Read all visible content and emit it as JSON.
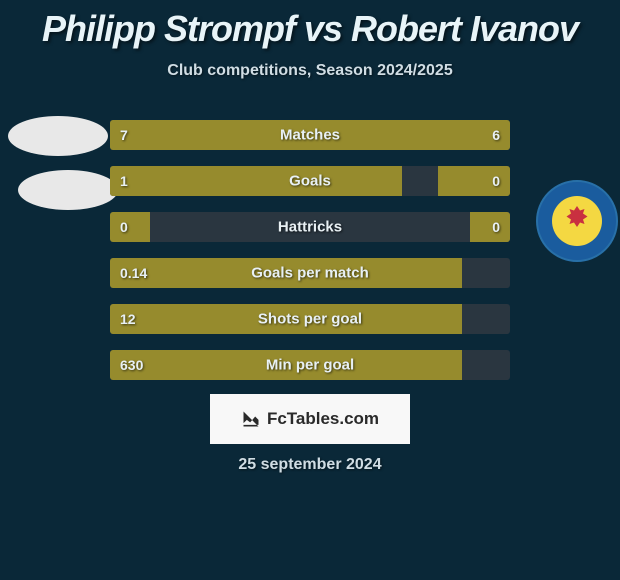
{
  "title": "Philipp Strompf vs Robert Ivanov",
  "subtitle": "Club competitions, Season 2024/2025",
  "date": "25 september 2024",
  "logo_text": "FcTables.com",
  "colors": {
    "background": "#0a2838",
    "bar_fill": "#968b2d",
    "bar_empty": "#2a3640",
    "text_light": "#e8f4f8",
    "text_mid": "#d0dde4"
  },
  "stats": [
    {
      "label": "Matches",
      "left_value": "7",
      "right_value": "6",
      "left_pct": 50,
      "right_pct": 50
    },
    {
      "label": "Goals",
      "left_value": "1",
      "right_value": "0",
      "left_pct": 73,
      "right_pct": 18
    },
    {
      "label": "Hattricks",
      "left_value": "0",
      "right_value": "0",
      "left_pct": 10,
      "right_pct": 10
    },
    {
      "label": "Goals per match",
      "left_value": "0.14",
      "right_value": "",
      "left_pct": 88,
      "right_pct": 0
    },
    {
      "label": "Shots per goal",
      "left_value": "12",
      "right_value": "",
      "left_pct": 88,
      "right_pct": 0
    },
    {
      "label": "Min per goal",
      "left_value": "630",
      "right_value": "",
      "left_pct": 88,
      "right_pct": 0
    }
  ]
}
